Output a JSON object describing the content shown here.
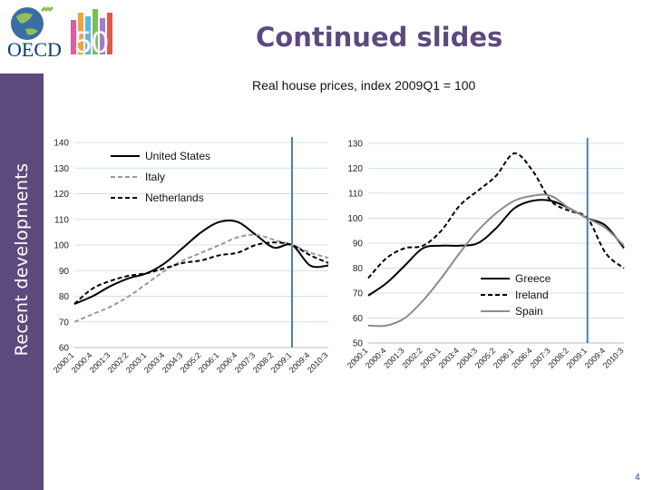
{
  "page": {
    "title": "Continued slides",
    "sidebar_label": "Recent developments",
    "page_number": "4",
    "logo": {
      "text": "OECD",
      "number": "50"
    },
    "colors": {
      "sidebar": "#5d4a7c",
      "title": "#5d4a7c",
      "marker_line": "#4f7fa8",
      "grid": "#cfe0ee"
    }
  },
  "chart_title": "Real house prices, index 2009Q1 = 100",
  "chart_data": [
    {
      "type": "line",
      "x": [
        "2000:1",
        "2000:4",
        "2001:3",
        "2002:2",
        "2003:1",
        "2003:4",
        "2004:3",
        "2005:2",
        "2006:1",
        "2006:4",
        "2007:3",
        "2008:2",
        "2009:1",
        "2009:4",
        "2010:3"
      ],
      "ylim": [
        60,
        140
      ],
      "yticks": [
        60,
        70,
        80,
        90,
        100,
        110,
        120,
        130,
        140
      ],
      "grid": true,
      "legend_position": "top-left",
      "marker_x": "2009:1",
      "series": [
        {
          "name": "United States",
          "style": "solid",
          "color": "#000000",
          "values": [
            77,
            80,
            84,
            87,
            89,
            93,
            99,
            105,
            109,
            109,
            104,
            99,
            100,
            92,
            92
          ]
        },
        {
          "name": "Italy",
          "style": "dashed",
          "color": "#9a9a9a",
          "values": [
            70,
            73,
            76,
            80,
            85,
            90,
            94,
            97,
            100,
            103,
            104,
            102,
            100,
            97,
            95
          ]
        },
        {
          "name": "Netherlands",
          "style": "dashed",
          "color": "#000000",
          "values": [
            77,
            83,
            86,
            88,
            89,
            91,
            93,
            94,
            96,
            97,
            100,
            101,
            100,
            96,
            93
          ]
        }
      ]
    },
    {
      "type": "line",
      "x": [
        "2000:1",
        "2000:4",
        "2001:3",
        "2002:2",
        "2003:1",
        "2003:4",
        "2004:3",
        "2005:2",
        "2006:1",
        "2006:4",
        "2007:3",
        "2008:2",
        "2009:1",
        "2009:4",
        "2010:3"
      ],
      "ylim": [
        50,
        130
      ],
      "yticks": [
        50,
        60,
        70,
        80,
        90,
        100,
        110,
        120,
        130
      ],
      "grid": true,
      "legend_position": "bottom-left",
      "marker_x": "2009:1",
      "series": [
        {
          "name": "Greece",
          "style": "solid",
          "color": "#000000",
          "values": [
            69,
            74,
            81,
            88,
            89,
            89,
            90,
            96,
            104,
            107,
            107,
            104,
            100,
            97,
            88
          ]
        },
        {
          "name": "Ireland",
          "style": "dashed",
          "color": "#000000",
          "values": [
            76,
            84,
            88,
            89,
            95,
            105,
            111,
            117,
            126,
            119,
            107,
            103,
            100,
            86,
            80
          ]
        },
        {
          "name": "Spain",
          "style": "solid",
          "color": "#8c8c8c",
          "values": [
            57,
            57,
            60,
            67,
            76,
            86,
            95,
            102,
            107,
            109,
            109,
            104,
            100,
            96,
            89
          ]
        }
      ]
    }
  ]
}
